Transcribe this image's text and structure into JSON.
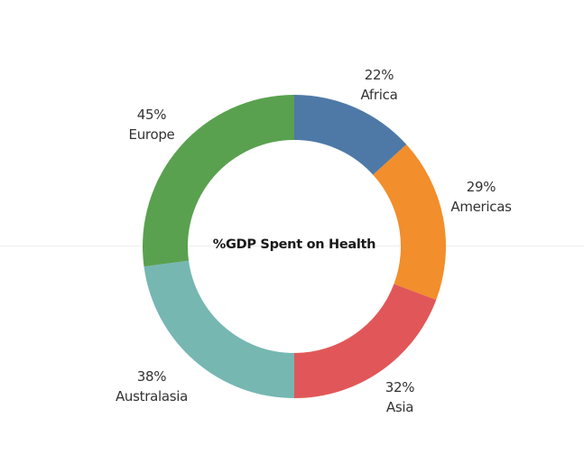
{
  "chart_data": {
    "type": "pie",
    "subtype": "donut",
    "title": "%GDP Spent on Health",
    "categories": [
      "Africa",
      "Americas",
      "Asia",
      "Australasia",
      "Europe"
    ],
    "values": [
      22,
      29,
      32,
      38,
      45
    ],
    "labels": [
      "22%",
      "29%",
      "32%",
      "38%",
      "45%"
    ],
    "colors": [
      "#4e79a7",
      "#f28e2b",
      "#e15759",
      "#76b7b2",
      "#59a14f"
    ],
    "start_angle": "top, clockwise",
    "legend": "none (direct labels)"
  },
  "center_title": "%GDP Spent on Health",
  "slices": [
    {
      "name": "Africa",
      "pct": "22%",
      "color": "#4e79a7"
    },
    {
      "name": "Americas",
      "pct": "29%",
      "color": "#f28e2b"
    },
    {
      "name": "Asia",
      "pct": "32%",
      "color": "#e15759"
    },
    {
      "name": "Australasia",
      "pct": "38%",
      "color": "#76b7b2"
    },
    {
      "name": "Europe",
      "pct": "45%",
      "color": "#59a14f"
    }
  ]
}
